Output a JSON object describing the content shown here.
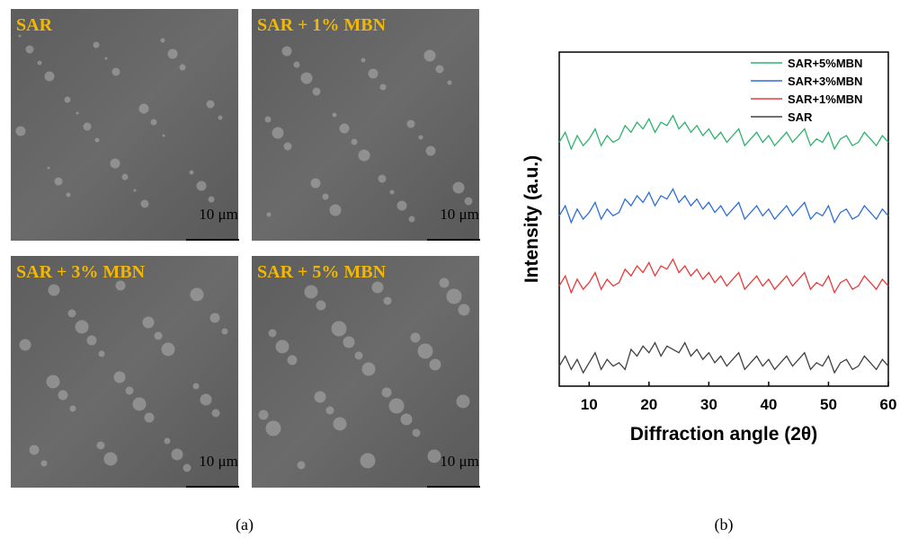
{
  "panels": [
    {
      "label": "SAR",
      "scale": "10 μm"
    },
    {
      "label": "SAR + 1% MBN",
      "scale": "10 μm"
    },
    {
      "label": "SAR + 3% MBN",
      "scale": "10 μm"
    },
    {
      "label": "SAR + 5% MBN",
      "scale": "10 μm"
    }
  ],
  "captions": {
    "a": "(a)",
    "b": "(b)"
  },
  "chart_data": {
    "type": "line",
    "x_label": "Diffraction angle (2θ)",
    "y_label": "Intensity (a.u.)",
    "xlim": [
      5,
      60
    ],
    "xticks": [
      10,
      20,
      30,
      40,
      50,
      60
    ],
    "ylim": [
      0,
      100
    ],
    "legend": "top-right",
    "x": [
      5,
      6,
      7,
      8,
      9,
      10,
      11,
      12,
      13,
      14,
      15,
      16,
      17,
      18,
      19,
      20,
      21,
      22,
      23,
      24,
      25,
      26,
      27,
      28,
      29,
      30,
      31,
      32,
      33,
      34,
      35,
      36,
      37,
      38,
      39,
      40,
      41,
      42,
      43,
      44,
      45,
      46,
      47,
      48,
      49,
      50,
      51,
      52,
      53,
      54,
      55,
      56,
      57,
      58,
      59,
      60
    ],
    "series": [
      {
        "name": "SAR+5%MBN",
        "color": "#2db36b",
        "values": [
          73,
          76,
          71,
          75,
          72,
          74,
          77,
          72,
          75,
          73,
          74,
          78,
          76,
          79,
          77,
          80,
          76,
          79,
          78,
          81,
          77,
          79,
          76,
          78,
          75,
          77,
          74,
          76,
          73,
          75,
          77,
          72,
          74,
          76,
          73,
          75,
          72,
          74,
          76,
          73,
          75,
          77,
          72,
          74,
          73,
          76,
          71,
          74,
          75,
          72,
          73,
          76,
          74,
          72,
          75,
          73
        ]
      },
      {
        "name": "SAR+3%MBN",
        "color": "#2e6fd6",
        "values": [
          51,
          54,
          49,
          53,
          50,
          52,
          55,
          50,
          53,
          51,
          52,
          56,
          54,
          57,
          55,
          58,
          54,
          57,
          56,
          59,
          55,
          57,
          54,
          56,
          53,
          55,
          52,
          54,
          51,
          53,
          55,
          50,
          52,
          54,
          51,
          53,
          50,
          52,
          54,
          51,
          53,
          55,
          50,
          52,
          51,
          54,
          49,
          52,
          53,
          50,
          51,
          54,
          52,
          50,
          53,
          51
        ]
      },
      {
        "name": "SAR+1%MBN",
        "color": "#e83a3a",
        "values": [
          30,
          33,
          28,
          32,
          29,
          31,
          34,
          29,
          32,
          30,
          31,
          35,
          33,
          36,
          34,
          37,
          33,
          36,
          35,
          38,
          34,
          36,
          33,
          35,
          32,
          34,
          31,
          33,
          30,
          32,
          34,
          29,
          31,
          33,
          30,
          32,
          29,
          31,
          33,
          30,
          32,
          34,
          29,
          31,
          30,
          33,
          28,
          31,
          32,
          29,
          30,
          33,
          31,
          29,
          32,
          30
        ]
      },
      {
        "name": "SAR",
        "color": "#404040",
        "values": [
          6,
          9,
          5,
          8,
          4,
          7,
          10,
          5,
          8,
          6,
          7,
          5,
          11,
          9,
          12,
          10,
          13,
          9,
          12,
          11,
          10,
          13,
          9,
          11,
          8,
          10,
          7,
          9,
          6,
          8,
          10,
          5,
          7,
          9,
          6,
          8,
          5,
          7,
          9,
          6,
          8,
          10,
          5,
          7,
          6,
          9,
          4,
          7,
          8,
          5,
          6,
          9,
          7,
          5,
          8,
          6
        ]
      }
    ]
  }
}
